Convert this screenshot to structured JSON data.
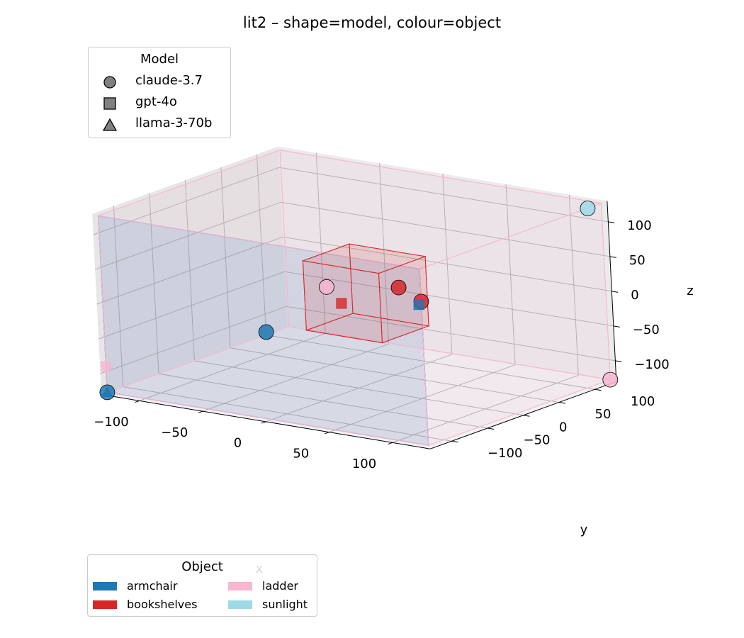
{
  "chart_data": {
    "type": "scatter",
    "title": "lit2 – shape=model, colour=object",
    "xlabel": "x",
    "ylabel": "y",
    "zlabel": "z",
    "xlim": [
      -130,
      130
    ],
    "ylim": [
      -130,
      130
    ],
    "zlim": [
      -130,
      130
    ],
    "xticks": [
      "−100",
      "−50",
      "0",
      "50",
      "100"
    ],
    "yticks": [
      "−100",
      "−50",
      "0",
      "50",
      "100"
    ],
    "zticks": [
      "−100",
      "−50",
      "0",
      "50",
      "100"
    ],
    "grid": true,
    "legends": [
      {
        "title": "Model",
        "placement": "top-left",
        "entries": [
          {
            "label": "claude-3.7",
            "marker": "circle"
          },
          {
            "label": "gpt-4o",
            "marker": "square"
          },
          {
            "label": "llama-3-70b",
            "marker": "triangle"
          }
        ]
      },
      {
        "title": "Object",
        "placement": "bottom-left",
        "entries": [
          {
            "label": "armchair",
            "color": "#1f77b4"
          },
          {
            "label": "ladder",
            "color": "#f7b6d2"
          },
          {
            "label": "bookshelves",
            "color": "#d62728"
          },
          {
            "label": "sunlight",
            "color": "#9edae5"
          }
        ]
      }
    ],
    "boxes": [
      {
        "object": "armchair",
        "color": "#1f77b4",
        "min": [
          -127,
          -127,
          -127
        ],
        "max": [
          127,
          -127,
          127
        ]
      },
      {
        "object": "ladder",
        "color": "#f7b6d2",
        "min": [
          -127,
          -127,
          -127
        ],
        "max": [
          127,
          127,
          127
        ]
      },
      {
        "object": "bookshelves",
        "color": "#d62728",
        "min": [
          -25,
          -25,
          -45
        ],
        "max": [
          35,
          40,
          55
        ]
      }
    ],
    "points": [
      {
        "model": "claude-3.7",
        "object": "sunlight",
        "color": "#9edae5",
        "x": 120,
        "y": 120,
        "z": 120
      },
      {
        "model": "claude-3.7",
        "object": "ladder",
        "color": "#f7b6d2",
        "x": -10,
        "y": -20,
        "z": 20
      },
      {
        "model": "claude-3.7",
        "object": "bookshelves",
        "color": "#d62728",
        "x": 30,
        "y": 10,
        "z": 20
      },
      {
        "model": "claude-3.7",
        "object": "armchair",
        "color": "#1f77b4",
        "x": -60,
        "y": -20,
        "z": -60
      },
      {
        "model": "claude-3.7",
        "object": "armchair",
        "color": "#1f77b4",
        "x": -127,
        "y": -127,
        "z": -127
      },
      {
        "model": "claude-3.7",
        "object": "bookshelves",
        "color": "#d62728",
        "x": 127,
        "y": -127,
        "z": 80
      },
      {
        "model": "claude-3.7",
        "object": "ladder",
        "color": "#f7b6d2",
        "x": 127,
        "y": 127,
        "z": -127
      },
      {
        "model": "gpt-4o",
        "object": "bookshelves",
        "color": "#d62728",
        "x": -25,
        "y": 25,
        "z": -25
      },
      {
        "model": "gpt-4o",
        "object": "ladder",
        "color": "#f7b6d2",
        "x": -127,
        "y": -127,
        "z": -90
      },
      {
        "model": "gpt-4o",
        "object": "armchair",
        "color": "#1f77b4",
        "x": 125,
        "y": -127,
        "z": 75
      },
      {
        "model": "llama-3-70b",
        "object": "armchair",
        "color": "#1f77b4",
        "x": -127,
        "y": -127,
        "z": -127
      }
    ]
  }
}
